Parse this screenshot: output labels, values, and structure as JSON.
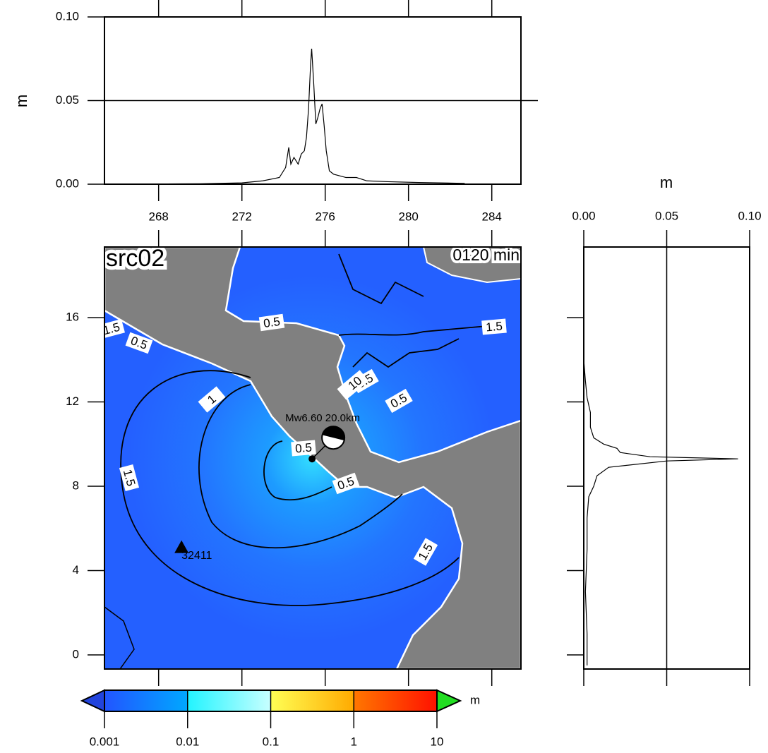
{
  "top_profile": {
    "type": "line",
    "ylabel": "m",
    "xlim": [
      265.4,
      285.4
    ],
    "xticks": [
      268,
      272,
      276,
      280,
      284
    ],
    "ylim": [
      0,
      0.1
    ],
    "yticks": [
      {
        "value": 0,
        "label": "0.00"
      },
      {
        "value": 0.05,
        "label": "0.05"
      },
      {
        "value": 0.1,
        "label": "0.10"
      }
    ],
    "grid": true,
    "x": [
      266.5,
      270,
      272,
      273,
      273.8,
      274.1,
      274.25,
      274.35,
      274.5,
      274.7,
      274.85,
      275.0,
      275.1,
      275.2,
      275.3,
      275.35,
      275.45,
      275.55,
      275.65,
      275.75,
      275.85,
      275.95,
      276.05,
      276.2,
      276.4,
      276.7,
      277.0,
      277.5,
      278.0,
      279.0,
      280.5,
      282.7
    ],
    "values": [
      0,
      0.0003,
      0.0008,
      0.002,
      0.004,
      0.01,
      0.022,
      0.012,
      0.016,
      0.012,
      0.018,
      0.02,
      0.028,
      0.045,
      0.072,
      0.081,
      0.06,
      0.036,
      0.04,
      0.045,
      0.048,
      0.035,
      0.02,
      0.008,
      0.006,
      0.005,
      0.004,
      0.004,
      0.002,
      0.0015,
      0.001,
      0.0005
    ]
  },
  "side_profile": {
    "type": "line",
    "xlabel": "m",
    "xlim": [
      0,
      0.1
    ],
    "xticks": [
      {
        "value": 0,
        "label": "0.00"
      },
      {
        "value": 0.05,
        "label": "0.05"
      },
      {
        "value": 0.1,
        "label": "0.10"
      }
    ],
    "grid": true,
    "lat": [
      -0.5,
      1,
      3,
      5,
      6.5,
      7.5,
      8.0,
      8.5,
      8.9,
      9.2,
      9.3,
      9.4,
      9.6,
      9.8,
      10.0,
      10.3,
      10.8,
      11.5,
      12.2,
      13.0,
      14.0
    ],
    "values": [
      0.002,
      0.002,
      0.001,
      0.002,
      0.002,
      0.003,
      0.006,
      0.008,
      0.015,
      0.05,
      0.093,
      0.04,
      0.022,
      0.02,
      0.012,
      0.006,
      0.004,
      0.004,
      0.002,
      0.001,
      0
    ]
  },
  "map": {
    "title": "src02",
    "time": "0120 min",
    "xlim": [
      265.4,
      285.4
    ],
    "xticks": [
      268,
      272,
      276,
      280,
      284
    ],
    "ylim": [
      -0.67,
      19.35
    ],
    "yticks": [
      0,
      4,
      8,
      12,
      16
    ],
    "contour_labels": [
      "1.5",
      "0.5",
      "0.5",
      "1",
      "1.5",
      "1",
      "1.5",
      "1.5",
      "0.5",
      "0.5",
      "0.5",
      "0.5",
      "10"
    ],
    "epicenter": {
      "label": "Mw6.60 20.0km",
      "lon": 275.37,
      "lat": 9.3
    },
    "station": {
      "name": "32411",
      "lon": 269.1,
      "lat": 5.1
    }
  },
  "colorbar": {
    "scale": "log",
    "lim": [
      0.001,
      10
    ],
    "unit": "m",
    "ticks": [
      0.001,
      0.01,
      0.1,
      1,
      10
    ],
    "colors": [
      [
        "#2255ff",
        "#00a8ff"
      ],
      [
        "#22f4ff",
        "#c8ffff"
      ],
      [
        "#ffff55",
        "#ffaa00"
      ],
      [
        "#ff7700",
        "#ff1100"
      ]
    ],
    "under": "#2244dd",
    "over": "#22dd22"
  }
}
